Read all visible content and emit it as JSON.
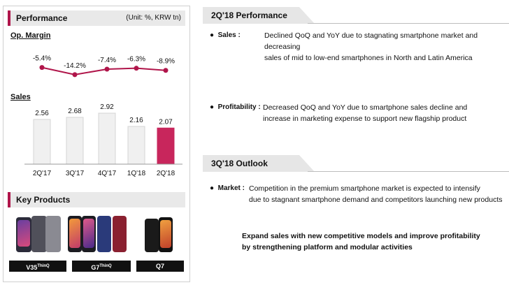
{
  "performance_panel": {
    "title": "Performance",
    "unit": "(Unit: %, KRW tn)",
    "op_margin_label": "Op. Margin",
    "sales_label": "Sales"
  },
  "key_products": {
    "title": "Key Products",
    "items": [
      {
        "name": "V35",
        "sup": "ThinQ"
      },
      {
        "name": "G7",
        "sup": "ThinQ"
      },
      {
        "name": "Q7",
        "sup": ""
      }
    ]
  },
  "chart_data": [
    {
      "type": "line",
      "title": "Op. Margin",
      "categories": [
        "2Q'17",
        "3Q'17",
        "4Q'17",
        "1Q'18",
        "2Q'18"
      ],
      "values": [
        -5.4,
        -14.2,
        -7.4,
        -6.3,
        -8.9
      ],
      "labels": [
        "-5.4%",
        "-14.2%",
        "-7.4%",
        "-6.3%",
        "-8.9%"
      ],
      "color": "#b0154a",
      "ylim": [
        -16,
        -4
      ]
    },
    {
      "type": "bar",
      "title": "Sales",
      "categories": [
        "2Q'17",
        "3Q'17",
        "4Q'17",
        "1Q'18",
        "2Q'18"
      ],
      "values": [
        2.56,
        2.68,
        2.92,
        2.16,
        2.07
      ],
      "labels": [
        "2.56",
        "2.68",
        "2.92",
        "2.16",
        "2.07"
      ],
      "bar_color": "#f0f0f0",
      "highlight_color": "#c8265c",
      "highlight_index": 4,
      "ylim": [
        0,
        3.2
      ]
    }
  ],
  "performance_2q18": {
    "title": "2Q'18 Performance",
    "sales": {
      "label": "Sales :",
      "lines": [
        "Declined QoQ and YoY due to stagnating smartphone market and decreasing",
        "sales of mid to low-end smartphones in North and Latin America"
      ]
    },
    "profitability": {
      "label": "Profitability :",
      "lines": [
        "Decreased QoQ and YoY due to smartphone sales decline and",
        "increase in marketing expense to support new flagship product"
      ]
    }
  },
  "outlook_3q18": {
    "title": "3Q'18 Outlook",
    "market": {
      "label": "Market :",
      "lines": [
        "Competition in the premium smartphone market is expected to intensify",
        "due to stagnant smartphone demand and competitors launching new products"
      ]
    },
    "strategy_lines": [
      "Expand sales with new competitive models and improve profitability",
      "by strengthening platform and modular activities"
    ]
  },
  "colors": {
    "accent": "#b0154a",
    "header_bg": "#e9e9e9"
  }
}
